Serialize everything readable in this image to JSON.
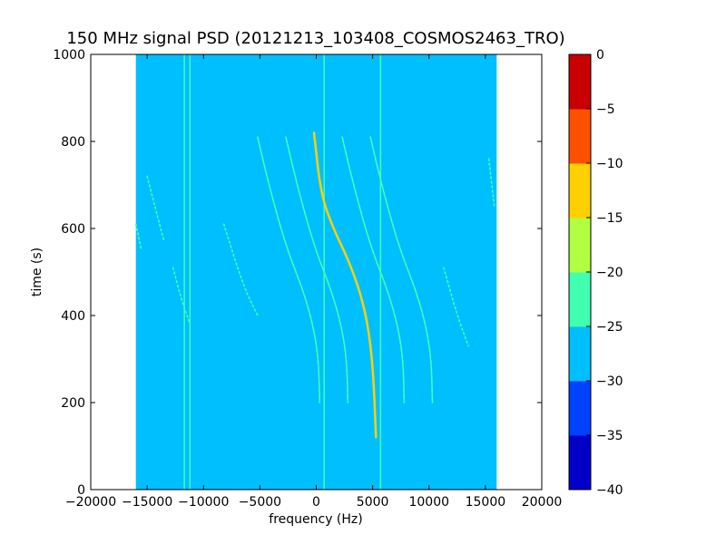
{
  "chart_data": {
    "type": "heatmap",
    "title": "150 MHz signal PSD (20121213_103408_COSMOS2463_TRO)",
    "xlabel": "frequency (Hz)",
    "ylabel": "time (s)",
    "xlim": [
      -20000,
      20000
    ],
    "ylim": [
      0,
      1000
    ],
    "xticks": [
      -20000,
      -15000,
      -10000,
      -5000,
      0,
      5000,
      10000,
      15000,
      20000
    ],
    "xtick_labels": [
      "−20000",
      "−15000",
      "−10000",
      "−5000",
      "0",
      "5000",
      "10000",
      "15000",
      "20000"
    ],
    "yticks": [
      0,
      200,
      400,
      600,
      800,
      1000
    ],
    "ytick_labels": [
      "0",
      "200",
      "400",
      "600",
      "800",
      "1000"
    ],
    "data_extent": {
      "x": [
        -16000,
        16000
      ],
      "y": [
        0,
        1000
      ]
    },
    "background_level": -27.5,
    "colorbar": {
      "levels": [
        -40,
        -35,
        -30,
        -25,
        -20,
        -15,
        -10,
        -5,
        0
      ],
      "tick_labels": [
        "−40",
        "−35",
        "−30",
        "−25",
        "−20",
        "−15",
        "−10",
        "−5",
        "0"
      ],
      "colors": [
        "#0000c8",
        "#0040ff",
        "#00bfff",
        "#40ffb0",
        "#b0ff40",
        "#ffd000",
        "#ff5000",
        "#c80000"
      ]
    },
    "vertical_lines": [
      {
        "x": -11700,
        "y": [
          0,
          1000
        ],
        "level": -22.5
      },
      {
        "x": -11200,
        "y": [
          0,
          1000
        ],
        "level": -22.5
      },
      {
        "x": 700,
        "y": [
          0,
          1000
        ],
        "level": -22.5
      },
      {
        "x": 5700,
        "y": [
          0,
          1000
        ],
        "level": -22.5
      }
    ],
    "tracks": [
      {
        "name": "main",
        "level": -12.5,
        "points": [
          [
            -200,
            820
          ],
          [
            400,
            680
          ],
          [
            1500,
            600
          ],
          [
            3000,
            520
          ],
          [
            4300,
            420
          ],
          [
            5000,
            300
          ],
          [
            5300,
            120
          ]
        ]
      },
      {
        "name": "sideband",
        "level": -22.5,
        "points": [
          [
            -5200,
            810
          ],
          [
            -4200,
            700
          ],
          [
            -2700,
            560
          ],
          [
            -1200,
            460
          ],
          [
            -300,
            380
          ],
          [
            200,
            300
          ],
          [
            300,
            200
          ]
        ]
      },
      {
        "name": "sideband",
        "level": -22.5,
        "points": [
          [
            -2700,
            810
          ],
          [
            -1700,
            700
          ],
          [
            -200,
            560
          ],
          [
            1300,
            460
          ],
          [
            2200,
            380
          ],
          [
            2700,
            300
          ],
          [
            2800,
            200
          ]
        ]
      },
      {
        "name": "sideband",
        "level": -22.5,
        "points": [
          [
            2300,
            810
          ],
          [
            3300,
            700
          ],
          [
            4800,
            560
          ],
          [
            6300,
            460
          ],
          [
            7200,
            380
          ],
          [
            7700,
            300
          ],
          [
            7800,
            200
          ]
        ]
      },
      {
        "name": "sideband",
        "level": -22.5,
        "points": [
          [
            4800,
            810
          ],
          [
            5800,
            700
          ],
          [
            7300,
            560
          ],
          [
            8800,
            460
          ],
          [
            9700,
            380
          ],
          [
            10200,
            300
          ],
          [
            10300,
            200
          ]
        ]
      },
      {
        "name": "faint",
        "level": -25,
        "points": [
          [
            -16000,
            610
          ],
          [
            -15500,
            550
          ]
        ]
      },
      {
        "name": "faint",
        "level": -25,
        "points": [
          [
            -15000,
            720
          ],
          [
            -14000,
            620
          ],
          [
            -13500,
            570
          ]
        ]
      },
      {
        "name": "faint",
        "level": -25,
        "points": [
          [
            -12700,
            510
          ],
          [
            -12000,
            440
          ],
          [
            -11200,
            380
          ]
        ]
      },
      {
        "name": "faint",
        "level": -25,
        "points": [
          [
            -8200,
            610
          ],
          [
            -6500,
            470
          ],
          [
            -5200,
            400
          ]
        ]
      },
      {
        "name": "faint",
        "level": -25,
        "points": [
          [
            11300,
            510
          ],
          [
            12500,
            400
          ],
          [
            13500,
            330
          ]
        ]
      },
      {
        "name": "faint",
        "level": -25,
        "points": [
          [
            15300,
            760
          ],
          [
            15800,
            650
          ]
        ]
      }
    ]
  }
}
